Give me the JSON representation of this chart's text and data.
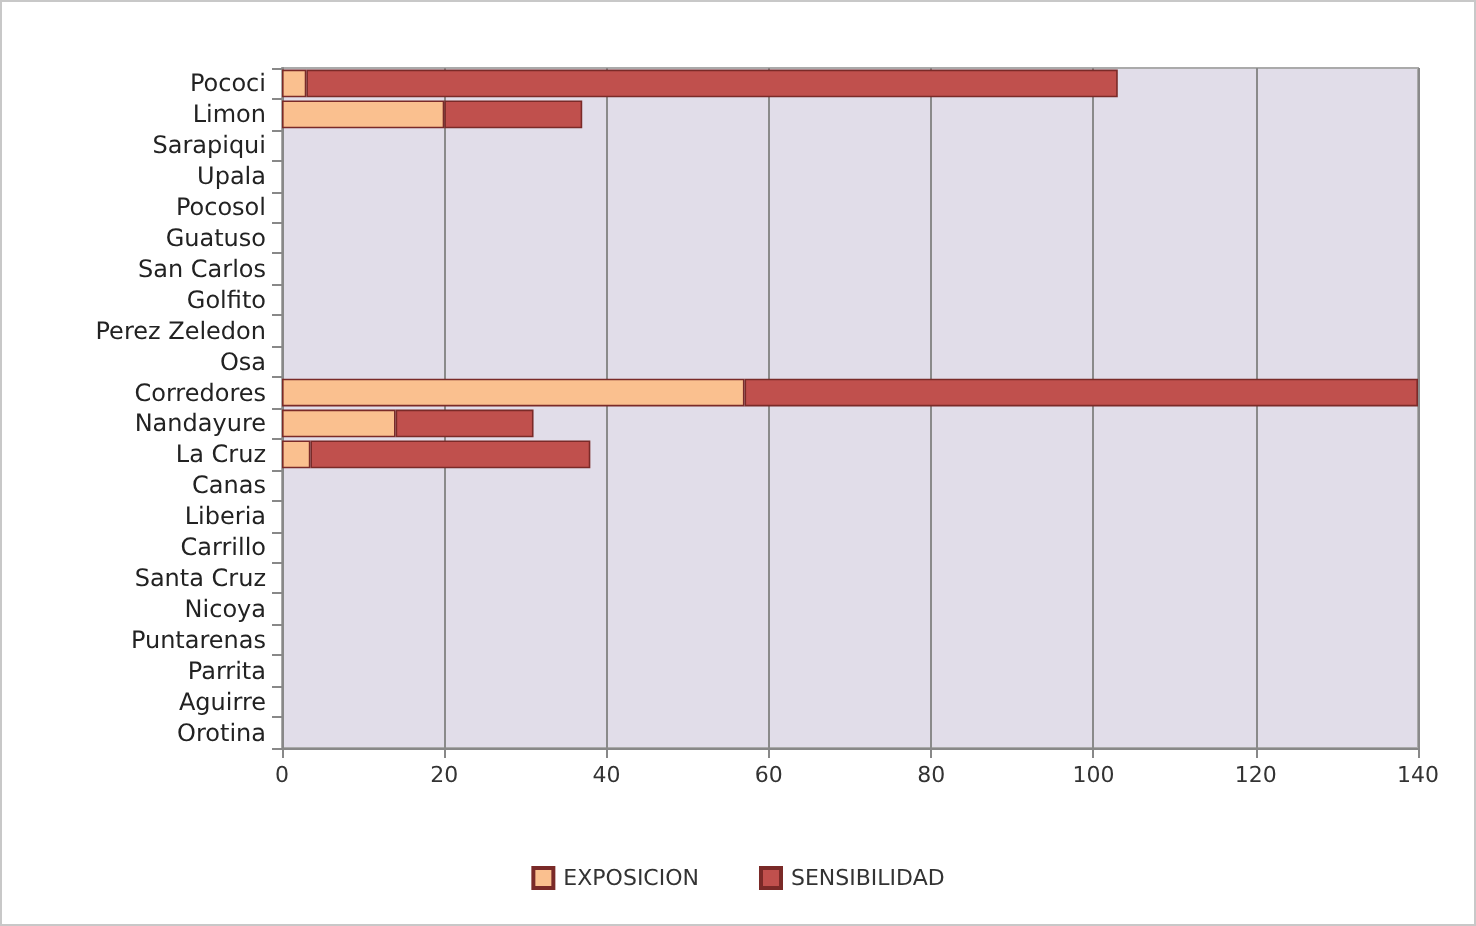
{
  "chart_data": {
    "type": "bar",
    "orientation": "horizontal",
    "stacked": true,
    "categories": [
      "Pococi",
      "Limon",
      "Sarapiqui",
      "Upala",
      "Pocosol",
      "Guatuso",
      "San Carlos",
      "Golfito",
      "Perez Zeledon",
      "Osa",
      "Corredores",
      "Nandayure",
      "La Cruz",
      "Canas",
      "Liberia",
      "Carrillo",
      "Santa Cruz",
      "Nicoya",
      "Puntarenas",
      "Parrita",
      "Aguirre",
      "Orotina"
    ],
    "series": [
      {
        "name": "EXPOSICION",
        "color": "#fac08f",
        "values": [
          3,
          20,
          0,
          0,
          0,
          0,
          0,
          0,
          0,
          0,
          57,
          14,
          3.5,
          0,
          0,
          0,
          0,
          0,
          0,
          0,
          0,
          0
        ]
      },
      {
        "name": "SENSIBILIDAD",
        "color": "#c0504d",
        "values": [
          100,
          17,
          0,
          0,
          0,
          0,
          0,
          0,
          0,
          0,
          83,
          17,
          34.5,
          0,
          0,
          0,
          0,
          0,
          0,
          0,
          0,
          0
        ]
      }
    ],
    "xlim": [
      0,
      140
    ],
    "xticks": [
      0,
      20,
      40,
      60,
      80,
      100,
      120,
      140
    ],
    "grid": "x",
    "legend": "bottom"
  }
}
